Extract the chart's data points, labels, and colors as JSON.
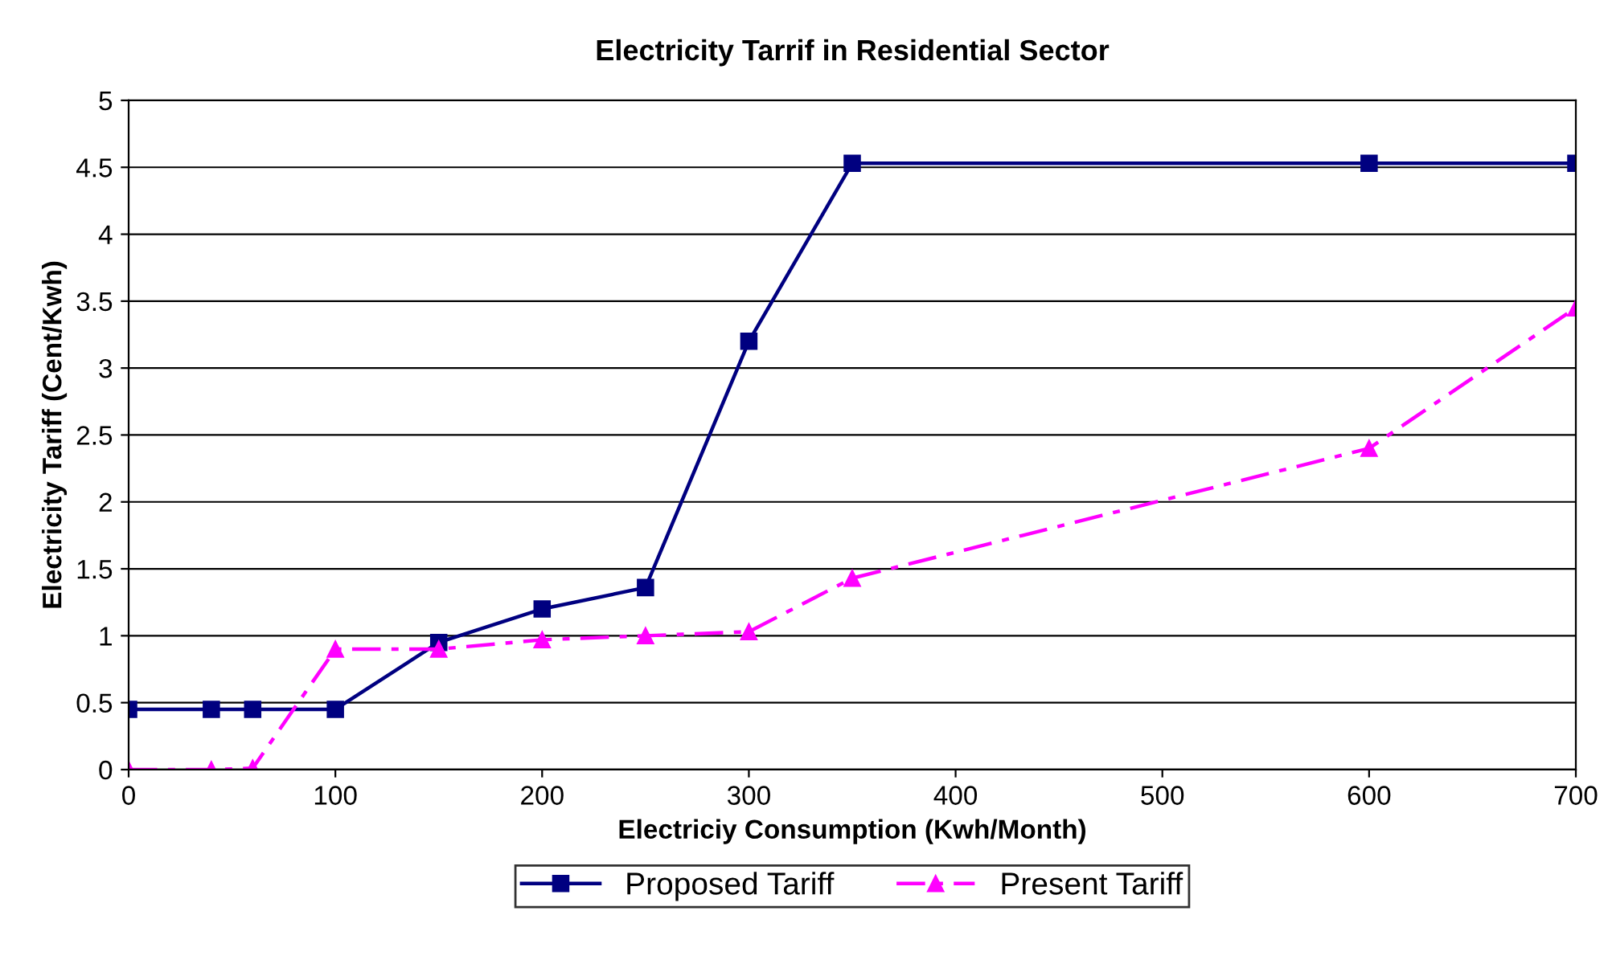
{
  "chart_data": {
    "type": "line",
    "title": "Electricity Tarrif in Residential Sector",
    "xlabel": "Electriciy Consumption (Kwh/Month)",
    "ylabel": "Electricity Tariff (Cent/Kwh)",
    "xlim": [
      0,
      700
    ],
    "xticks": [
      0,
      100,
      200,
      300,
      400,
      500,
      600,
      700
    ],
    "ylim": [
      0,
      5
    ],
    "yticks": [
      0,
      0.5,
      1,
      1.5,
      2,
      2.5,
      3,
      3.5,
      4,
      4.5,
      5
    ],
    "grid": "y",
    "legend": "bottom",
    "series": [
      {
        "name": "Proposed Tariff",
        "color": "#000080",
        "marker": "square",
        "line_style": "solid",
        "x": [
          0,
          40,
          60,
          100,
          150,
          200,
          250,
          300,
          350,
          600,
          700
        ],
        "values": [
          0.45,
          0.45,
          0.45,
          0.45,
          0.95,
          1.2,
          1.36,
          3.2,
          4.53,
          4.53,
          4.53
        ]
      },
      {
        "name": "Present Tariff",
        "color": "#ff00ff",
        "marker": "triangle",
        "line_style": "dashed",
        "x": [
          0,
          40,
          60,
          100,
          150,
          200,
          250,
          300,
          350,
          600,
          700
        ],
        "values": [
          0,
          0,
          0.01,
          0.9,
          0.9,
          0.97,
          1.0,
          1.03,
          1.43,
          2.4,
          3.45
        ]
      }
    ]
  }
}
